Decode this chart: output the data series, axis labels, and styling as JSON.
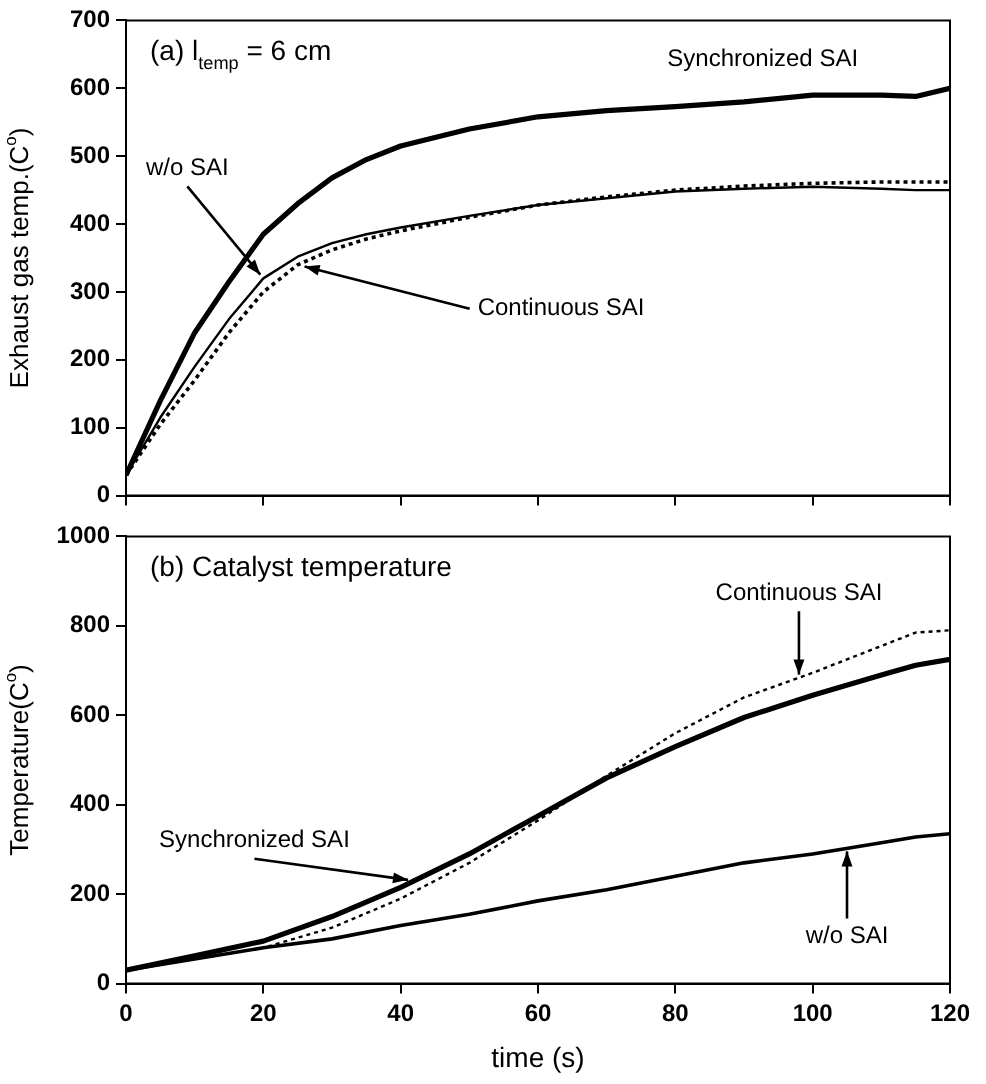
{
  "chart_data": [
    {
      "type": "line",
      "title": "(a) l$_{temp}$ = 6 cm",
      "ylabel": "Exhaust gas temp.(C$^{o}$)",
      "x": [
        0,
        5,
        10,
        15,
        20,
        25,
        30,
        35,
        40,
        50,
        60,
        70,
        80,
        90,
        100,
        110,
        115,
        120
      ],
      "series": [
        {
          "color": "#000000",
          "line_style": "solid",
          "values": [
            30,
            140,
            240,
            315,
            385,
            430,
            468,
            495,
            515,
            540,
            558,
            567,
            573,
            580,
            590,
            590,
            588,
            600
          ]
        },
        {
          "color": "#000000",
          "line_style": "solid",
          "values": [
            30,
            115,
            190,
            260,
            320,
            352,
            372,
            385,
            395,
            412,
            428,
            438,
            448,
            452,
            455,
            452,
            450,
            450
          ]
        },
        {
          "color": "#000000",
          "line_style": "dotted",
          "values": [
            30,
            105,
            170,
            240,
            300,
            340,
            362,
            378,
            390,
            410,
            428,
            440,
            450,
            456,
            460,
            462,
            462,
            462
          ]
        }
      ],
      "xlim": [
        0,
        120
      ],
      "xticks": [
        0,
        20,
        40,
        60,
        80,
        100,
        120
      ],
      "ylim": [
        0,
        700
      ],
      "yticks": [
        0,
        100,
        200,
        300,
        400,
        500,
        600,
        700
      ],
      "tick_labels": "y",
      "grid": false,
      "legend": false,
      "marker": "none",
      "annotations": [
        {
          "text": "Synchronized SAI",
          "x": 100,
          "y": 590
        },
        {
          "text": "w/o SAI",
          "x": 20,
          "y": 320
        },
        {
          "text": "Continuous SAI",
          "x": 25,
          "y": 340
        }
      ]
    },
    {
      "type": "line",
      "title": "(b) Catalyst temperature",
      "xlabel": "time (s)",
      "ylabel": "Temperature(C$^{o}$)",
      "x": [
        0,
        10,
        20,
        30,
        40,
        50,
        60,
        70,
        80,
        90,
        100,
        110,
        115,
        120
      ],
      "series": [
        {
          "color": "#000000",
          "line_style": "solid",
          "values": [
            30,
            62,
            95,
            150,
            215,
            290,
            375,
            460,
            530,
            595,
            645,
            690,
            712,
            725
          ]
        },
        {
          "color": "#000000",
          "line_style": "dotted",
          "values": [
            30,
            55,
            80,
            125,
            190,
            270,
            365,
            465,
            560,
            640,
            695,
            755,
            785,
            790
          ]
        },
        {
          "color": "#000000",
          "line_style": "solid",
          "values": [
            30,
            55,
            80,
            100,
            130,
            155,
            185,
            210,
            240,
            270,
            290,
            315,
            328,
            335
          ]
        }
      ],
      "xlim": [
        0,
        120
      ],
      "xticks": [
        0,
        20,
        40,
        60,
        80,
        100,
        120
      ],
      "ylim": [
        0,
        1000
      ],
      "yticks": [
        0,
        200,
        400,
        600,
        800,
        1000
      ],
      "grid": false,
      "legend": false,
      "marker": "none",
      "annotations": [
        {
          "text": "Continuous SAI",
          "x": 98,
          "y": 685
        },
        {
          "text": "Synchronized SAI",
          "x": 42,
          "y": 230
        },
        {
          "text": "w/o SAI",
          "x": 105,
          "y": 302
        }
      ]
    }
  ]
}
